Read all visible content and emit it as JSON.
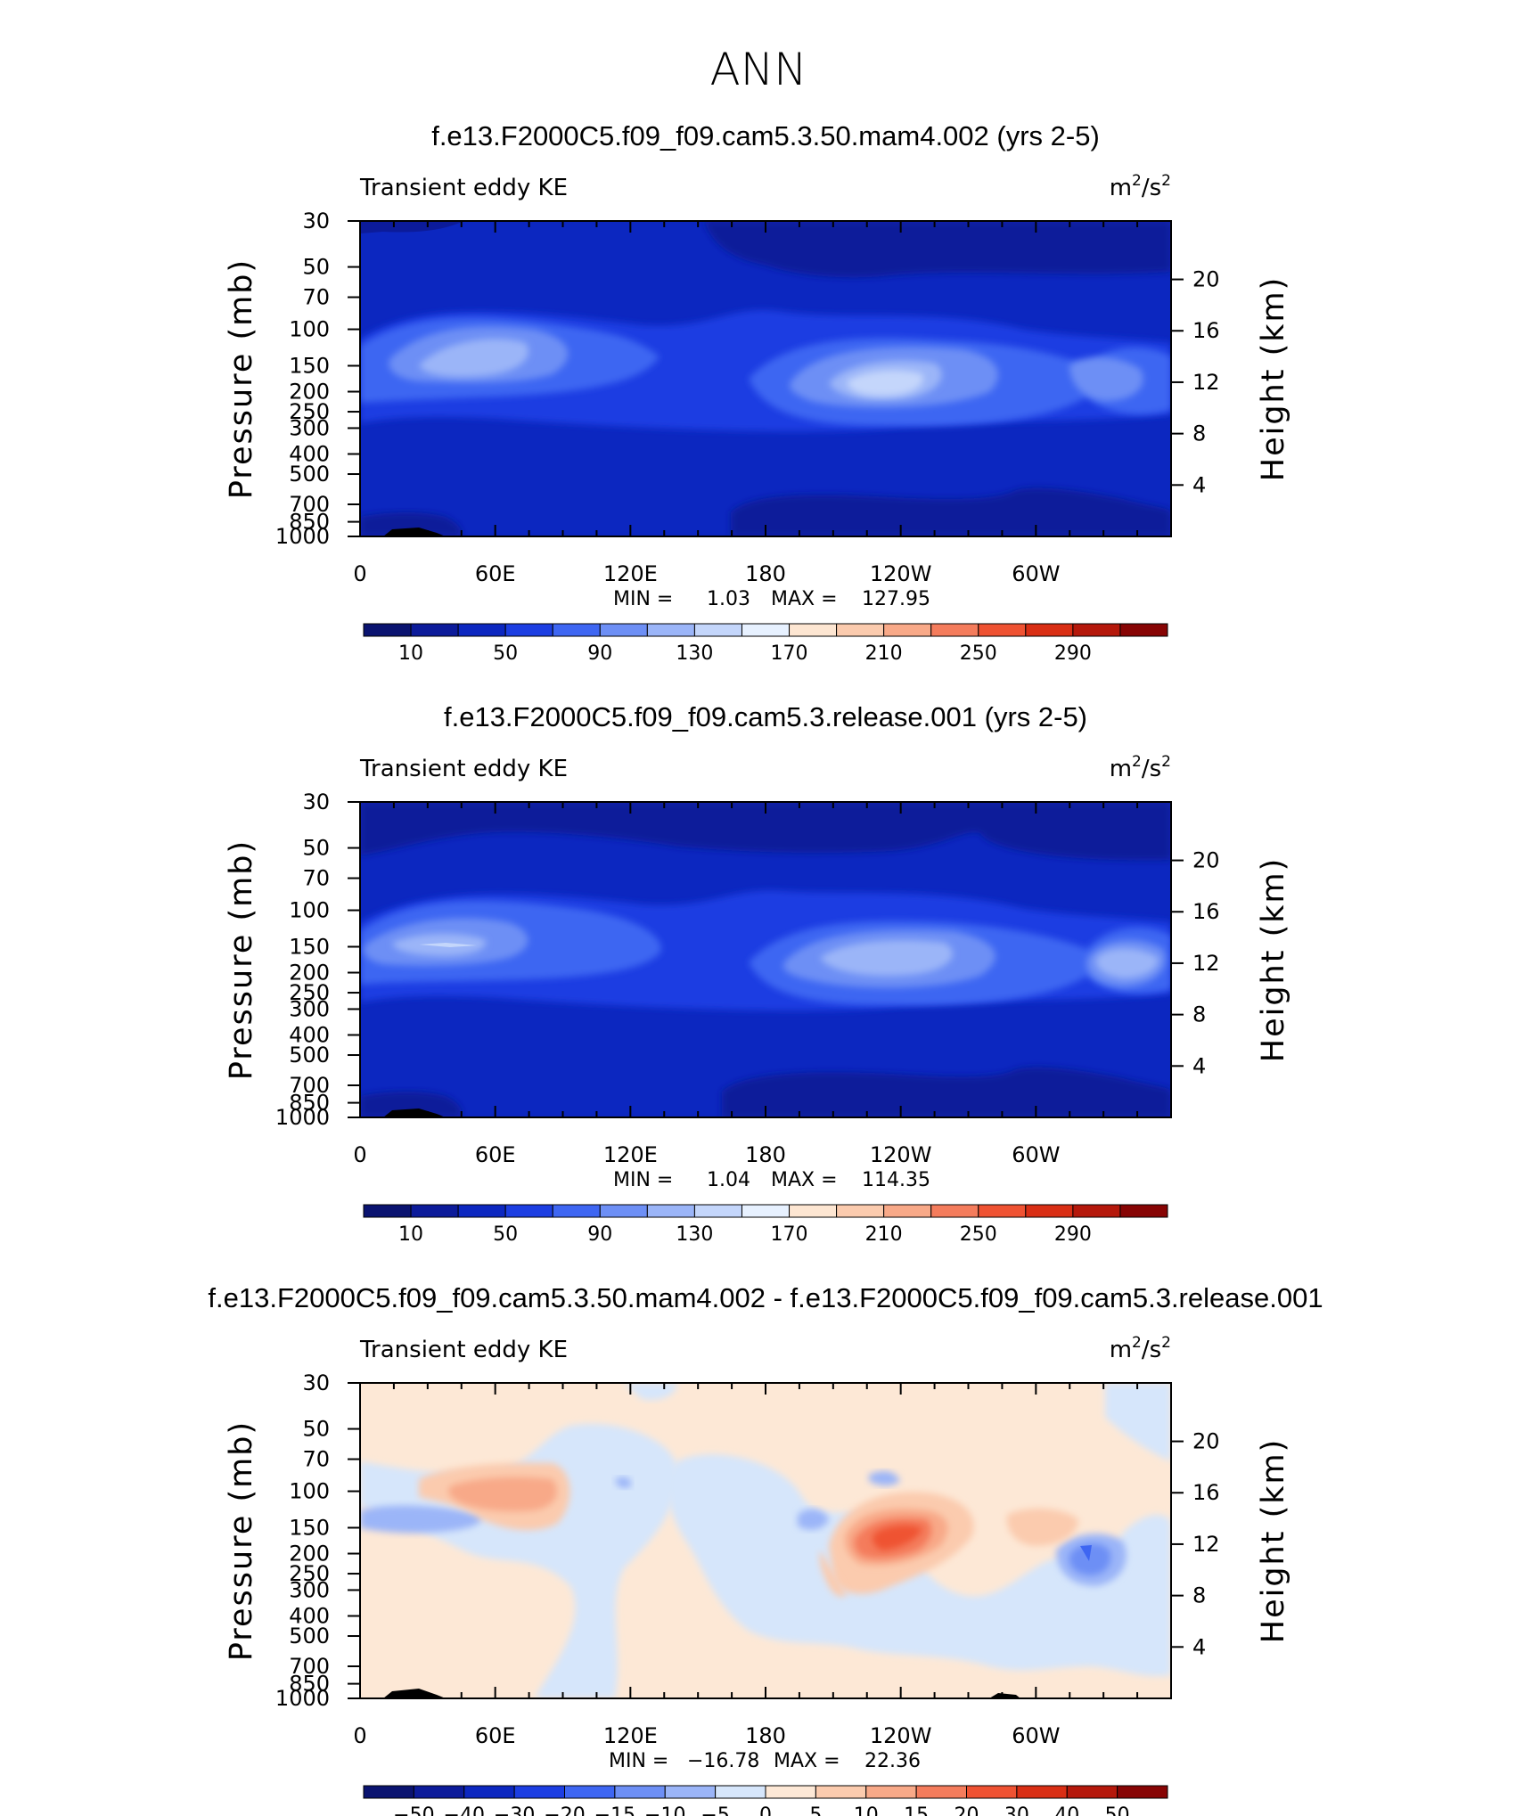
{
  "figure": {
    "season": "ANN"
  },
  "chart_data": [
    {
      "type": "heatmap",
      "title": "f.e13.F2000C5.f09_f09.cam5.3.50.mam4.002 (yrs 2-5)",
      "left_label": "Transient eddy KE",
      "units_prefix": "m",
      "units_middle": "/s",
      "units_exp": "2",
      "ylabel": "Pressure (mb)",
      "y2label": "Height (km)",
      "xticks": [
        "0",
        "60E",
        "120E",
        "180",
        "120W",
        "60W"
      ],
      "yticks": [
        "30",
        "50",
        "70",
        "100",
        "150",
        "200",
        "250",
        "300",
        "400",
        "500",
        "700",
        "850",
        "1000"
      ],
      "y2ticks": [
        "20",
        "16",
        "12",
        "8",
        "4"
      ],
      "y_scale": "log",
      "ylim": [
        1000,
        30
      ],
      "min_label": "MIN =",
      "min_value": "1.03",
      "max_label": "MAX =",
      "max_value": "127.95",
      "colorbar_ticks": [
        "10",
        "50",
        "90",
        "130",
        "170",
        "210",
        "250",
        "290"
      ],
      "colorbar_colors": [
        "#0a1370",
        "#0c1b9a",
        "#0c27c0",
        "#1c3ee2",
        "#3e66f2",
        "#6d8ff5",
        "#9bb5f8",
        "#c4d6fb",
        "#e7f1ff",
        "#fde6d2",
        "#fbcbae",
        "#f8a988",
        "#f47c5c",
        "#ef5232",
        "#d92e14",
        "#b5180b",
        "#870404"
      ]
    },
    {
      "type": "heatmap",
      "title": "f.e13.F2000C5.f09_f09.cam5.3.release.001 (yrs 2-5)",
      "left_label": "Transient eddy KE",
      "units_prefix": "m",
      "units_middle": "/s",
      "units_exp": "2",
      "ylabel": "Pressure (mb)",
      "y2label": "Height (km)",
      "xticks": [
        "0",
        "60E",
        "120E",
        "180",
        "120W",
        "60W"
      ],
      "yticks": [
        "30",
        "50",
        "70",
        "100",
        "150",
        "200",
        "250",
        "300",
        "400",
        "500",
        "700",
        "850",
        "1000"
      ],
      "y2ticks": [
        "20",
        "16",
        "12",
        "8",
        "4"
      ],
      "y_scale": "log",
      "ylim": [
        1000,
        30
      ],
      "min_label": "MIN =",
      "min_value": "1.04",
      "max_label": "MAX =",
      "max_value": "114.35",
      "colorbar_ticks": [
        "10",
        "50",
        "90",
        "130",
        "170",
        "210",
        "250",
        "290"
      ],
      "colorbar_colors": [
        "#0a1370",
        "#0c1b9a",
        "#0c27c0",
        "#1c3ee2",
        "#3e66f2",
        "#6d8ff5",
        "#9bb5f8",
        "#c4d6fb",
        "#e7f1ff",
        "#fde6d2",
        "#fbcbae",
        "#f8a988",
        "#f47c5c",
        "#ef5232",
        "#d92e14",
        "#b5180b",
        "#870404"
      ]
    },
    {
      "type": "heatmap",
      "title": "f.e13.F2000C5.f09_f09.cam5.3.50.mam4.002 - f.e13.F2000C5.f09_f09.cam5.3.release.001",
      "left_label": "Transient eddy KE",
      "units_prefix": "m",
      "units_middle": "/s",
      "units_exp": "2",
      "ylabel": "Pressure (mb)",
      "y2label": "Height (km)",
      "xticks": [
        "0",
        "60E",
        "120E",
        "180",
        "120W",
        "60W"
      ],
      "yticks": [
        "30",
        "50",
        "70",
        "100",
        "150",
        "200",
        "250",
        "300",
        "400",
        "500",
        "700",
        "850",
        "1000"
      ],
      "y2ticks": [
        "20",
        "16",
        "12",
        "8",
        "4"
      ],
      "y_scale": "log",
      "ylim": [
        1000,
        30
      ],
      "min_label": "MIN =",
      "min_value": "−16.78",
      "max_label": "MAX =",
      "max_value": "22.36",
      "colorbar_ticks": [
        "−50",
        "−40",
        "−30",
        "−20",
        "−15",
        "−10",
        "−5",
        "0",
        "5",
        "10",
        "15",
        "20",
        "30",
        "40",
        "50"
      ],
      "colorbar_colors": [
        "#0a1370",
        "#0c1b9a",
        "#0c27c0",
        "#1c3ee2",
        "#3e66f2",
        "#6d8ff5",
        "#9bb5f8",
        "#d6e6fb",
        "#fde8d6",
        "#fbcbae",
        "#f8a988",
        "#f47c5c",
        "#ef5232",
        "#d92e14",
        "#b5180b",
        "#870404"
      ]
    }
  ]
}
